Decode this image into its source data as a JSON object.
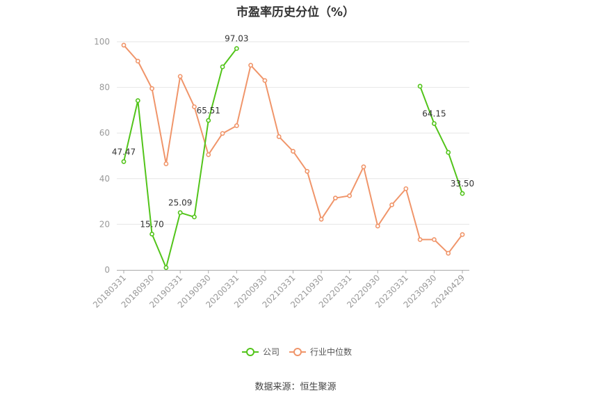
{
  "chart_data": {
    "type": "line",
    "title": "市盈率历史分位（%）",
    "source": "数据来源：恒生聚源",
    "ylim": [
      0,
      100
    ],
    "yticks": [
      0,
      20,
      40,
      60,
      80,
      100
    ],
    "grid": true,
    "legend_position": "bottom",
    "x_count": 25,
    "x_tick_labels": [
      "20180331",
      "20180930",
      "20190331",
      "20190930",
      "20200331",
      "20200930",
      "20210331",
      "20210930",
      "20220331",
      "20220930",
      "20230331",
      "20230930",
      "20240429"
    ],
    "series": [
      {
        "name": "公司",
        "color": "#52c41a",
        "values": [
          47.47,
          74.2,
          15.7,
          1.0,
          25.09,
          23.2,
          65.51,
          89.0,
          97.03,
          null,
          null,
          null,
          null,
          null,
          null,
          null,
          null,
          null,
          null,
          null,
          null,
          80.5,
          64.15,
          51.5,
          33.5
        ],
        "labels": [
          47.47,
          null,
          15.7,
          null,
          25.09,
          null,
          65.51,
          null,
          97.03,
          null,
          null,
          null,
          null,
          null,
          null,
          null,
          null,
          null,
          null,
          null,
          null,
          null,
          64.15,
          null,
          33.5
        ]
      },
      {
        "name": "行业中位数",
        "color": "#f0956a",
        "values": [
          98.5,
          91.5,
          79.5,
          46.5,
          84.8,
          71.5,
          50.5,
          59.8,
          63.2,
          89.7,
          83.0,
          58.4,
          52.0,
          43.2,
          22.2,
          31.5,
          32.5,
          45.2,
          19.2,
          28.5,
          35.6,
          13.3,
          13.3,
          7.3,
          15.5
        ],
        "labels": []
      }
    ]
  }
}
